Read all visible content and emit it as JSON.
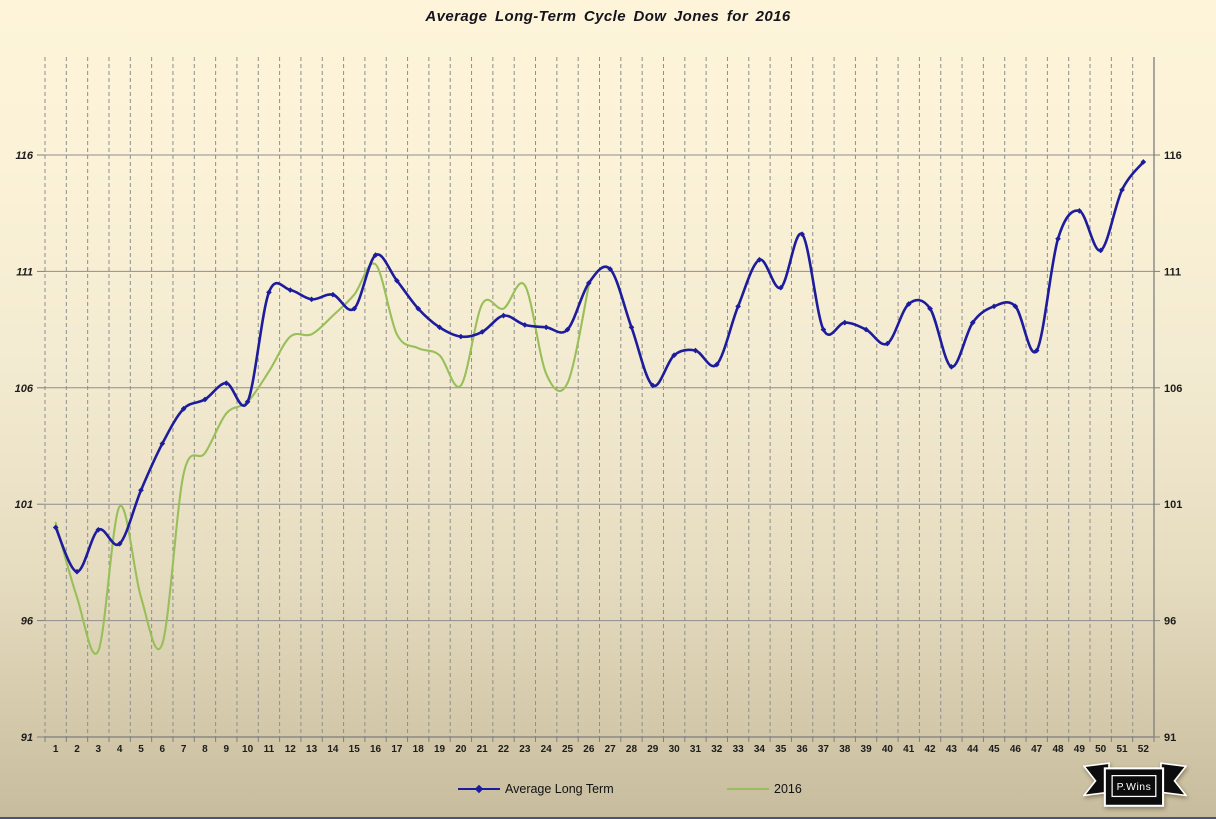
{
  "title": "Average Long-Term Cycle Dow Jones for 2016",
  "legend": {
    "items": [
      {
        "label": "Average Long Term",
        "color": "#1c1c9c"
      },
      {
        "label": "2016",
        "color": "#98bf5a"
      }
    ]
  },
  "logo": {
    "text": "P.Wins"
  },
  "colors": {
    "background_top": "#fdf4da",
    "background_bottom": "#c7bd9e",
    "gridline": "#8e8e8e",
    "axis": "#7e7e7e",
    "series_blue": "#1c1c9c",
    "series_green": "#98bf5a",
    "label_text": "#1c1c1c",
    "bottom_edge": "#465577"
  },
  "chart_data": {
    "type": "line",
    "title": "Average Long-Term Cycle Dow Jones for 2016",
    "xlabel": "",
    "ylabel": "",
    "x": [
      1,
      2,
      3,
      4,
      5,
      6,
      7,
      8,
      9,
      10,
      11,
      12,
      13,
      14,
      15,
      16,
      17,
      18,
      19,
      20,
      21,
      22,
      23,
      24,
      25,
      26,
      27,
      28,
      29,
      30,
      31,
      32,
      33,
      34,
      35,
      36,
      37,
      38,
      39,
      40,
      41,
      42,
      43,
      44,
      45,
      46,
      47,
      48,
      49,
      50,
      51,
      52
    ],
    "y_ticks": [
      91,
      96,
      101,
      106,
      111,
      116
    ],
    "ylim": [
      91,
      116
    ],
    "grid": {
      "horizontal": "solid",
      "vertical": "dashed"
    },
    "legend_position": "bottom",
    "series": [
      {
        "name": "Average Long Term",
        "color": "#1c1c9c",
        "smooth": true,
        "markers": true,
        "values": [
          100.0,
          98.1,
          99.9,
          99.3,
          101.6,
          103.6,
          105.1,
          105.5,
          106.2,
          105.4,
          110.1,
          110.2,
          109.8,
          110.0,
          109.4,
          111.7,
          110.6,
          109.4,
          108.6,
          108.2,
          108.4,
          109.1,
          108.7,
          108.6,
          108.5,
          110.5,
          111.1,
          108.6,
          106.1,
          107.4,
          107.6,
          107.0,
          109.5,
          111.5,
          110.3,
          112.6,
          108.5,
          108.8,
          108.5,
          107.9,
          109.6,
          109.4,
          106.9,
          108.8,
          109.5,
          109.5,
          107.6,
          112.4,
          113.6,
          111.9,
          114.5,
          115.7
        ]
      },
      {
        "name": "2016",
        "color": "#98bf5a",
        "smooth": true,
        "markers": false,
        "values": [
          100.2,
          97.0,
          94.7,
          100.9,
          97.0,
          95.0,
          102.3,
          103.2,
          104.9,
          105.4,
          106.7,
          108.2,
          108.3,
          109.1,
          110.0,
          111.3,
          108.3,
          107.7,
          107.4,
          106.1,
          109.6,
          109.4,
          110.4,
          106.6,
          106.2,
          110.4
        ]
      }
    ]
  }
}
